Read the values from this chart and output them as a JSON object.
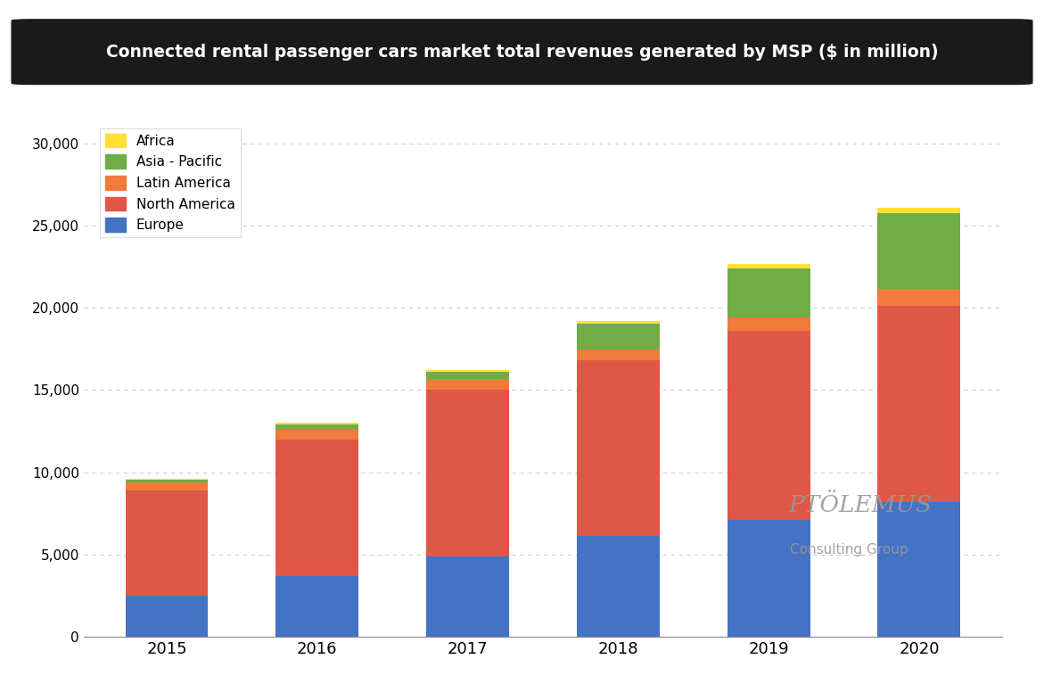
{
  "title": "Connected rental passenger cars market total revenues generated by MSP ($ in million)",
  "years": [
    "2015",
    "2016",
    "2017",
    "2018",
    "2019",
    "2020"
  ],
  "segments": {
    "Europe": {
      "values": [
        2500,
        3700,
        4900,
        6100,
        7100,
        8200
      ],
      "color": "#4472C4"
    },
    "North America": {
      "values": [
        6400,
        8300,
        10100,
        10700,
        11500,
        11900
      ],
      "color": "#E05747"
    },
    "Latin America": {
      "values": [
        480,
        580,
        680,
        680,
        800,
        1050
      ],
      "color": "#F07B3A"
    },
    "Asia - Pacific": {
      "values": [
        180,
        350,
        450,
        1550,
        3000,
        4600
      ],
      "color": "#70AD47"
    },
    "Africa": {
      "values": [
        40,
        70,
        70,
        170,
        300,
        350
      ],
      "color": "#FFE033"
    }
  },
  "ylim": [
    0,
    32000
  ],
  "yticks": [
    0,
    5000,
    10000,
    15000,
    20000,
    25000,
    30000
  ],
  "background_color": "#FFFFFF",
  "title_bg_color": "#1a1a1a",
  "title_text_color": "#FFFFFF",
  "grid_color": "#AAAAAA",
  "bar_width": 0.55,
  "legend_order": [
    "Africa",
    "Asia - Pacific",
    "Latin America",
    "North America",
    "Europe"
  ],
  "stack_order": [
    "Europe",
    "North America",
    "Latin America",
    "Asia - Pacific",
    "Africa"
  ]
}
